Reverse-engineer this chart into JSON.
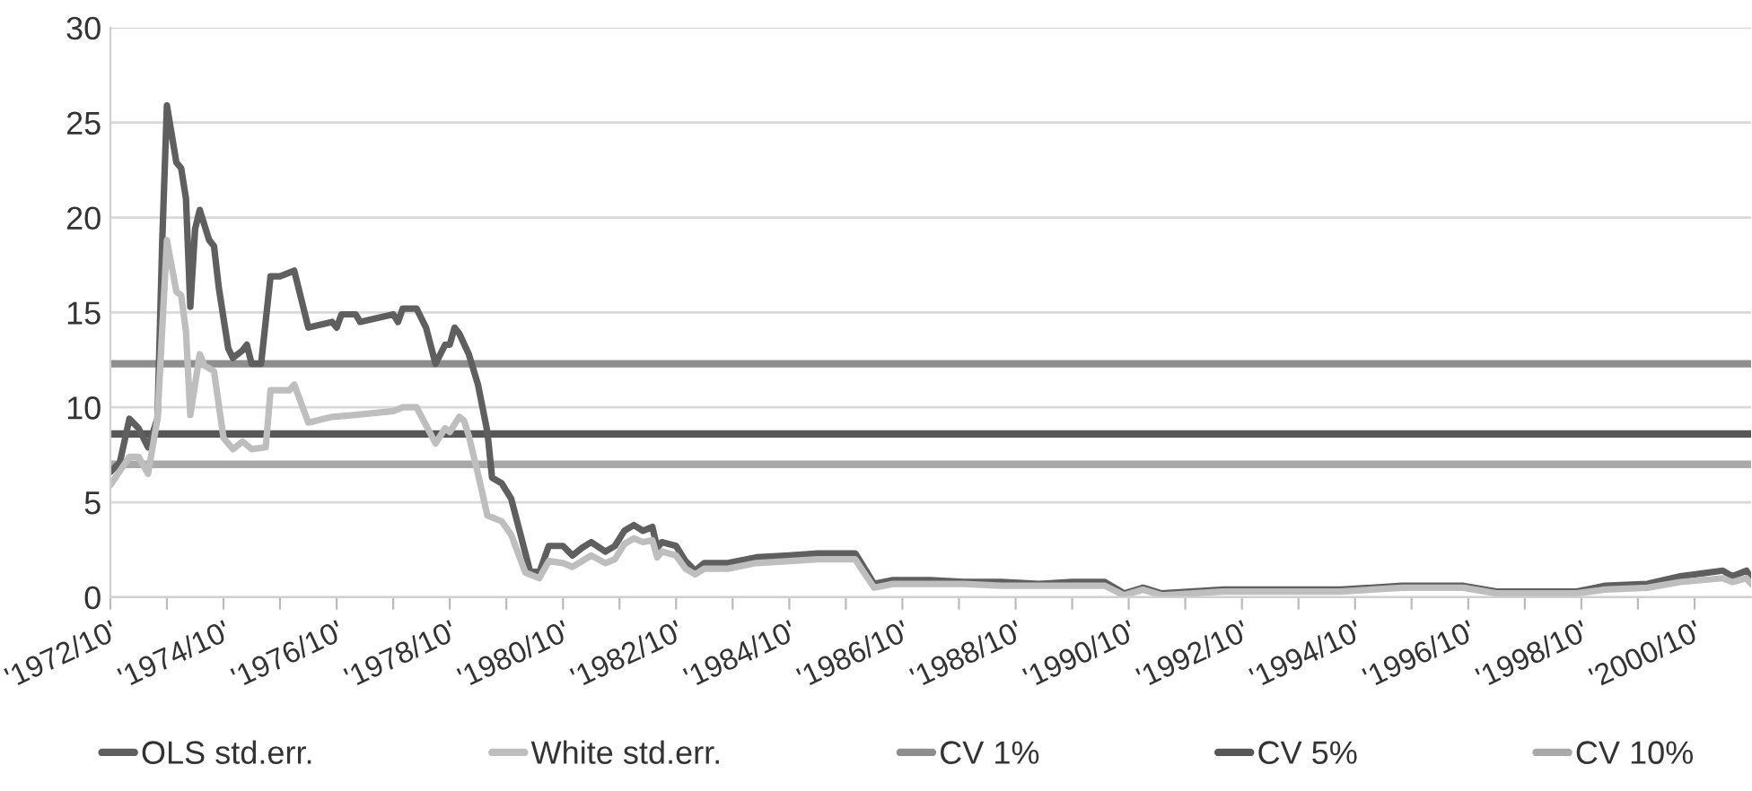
{
  "chart_data": {
    "type": "line",
    "xlim": [
      "1972-10",
      "2001-10"
    ],
    "xticks": [
      {
        "value": "1972-10",
        "label": "'1972/10'"
      },
      {
        "value": "1973-10",
        "label": null
      },
      {
        "value": "1974-10",
        "label": "'1974/10'"
      },
      {
        "value": "1975-10",
        "label": null
      },
      {
        "value": "1976-10",
        "label": "'1976/10'"
      },
      {
        "value": "1977-10",
        "label": null
      },
      {
        "value": "1978-10",
        "label": "'1978/10'"
      },
      {
        "value": "1979-10",
        "label": null
      },
      {
        "value": "1980-10",
        "label": "'1980/10'"
      },
      {
        "value": "1981-10",
        "label": null
      },
      {
        "value": "1982-10",
        "label": "'1982/10'"
      },
      {
        "value": "1983-10",
        "label": null
      },
      {
        "value": "1984-10",
        "label": "'1984/10'"
      },
      {
        "value": "1985-10",
        "label": null
      },
      {
        "value": "1986-10",
        "label": "'1986/10'"
      },
      {
        "value": "1987-10",
        "label": null
      },
      {
        "value": "1988-10",
        "label": "'1988/10'"
      },
      {
        "value": "1989-10",
        "label": null
      },
      {
        "value": "1990-10",
        "label": "'1990/10'"
      },
      {
        "value": "1991-10",
        "label": null
      },
      {
        "value": "1992-10",
        "label": "'1992/10'"
      },
      {
        "value": "1993-10",
        "label": null
      },
      {
        "value": "1994-10",
        "label": "'1994/10'"
      },
      {
        "value": "1995-10",
        "label": null
      },
      {
        "value": "1996-10",
        "label": "'1996/10'"
      },
      {
        "value": "1997-10",
        "label": null
      },
      {
        "value": "1998-10",
        "label": "'1998/10'"
      },
      {
        "value": "1999-10",
        "label": null
      },
      {
        "value": "2000-10",
        "label": "'2000/10'"
      }
    ],
    "ylim": [
      0,
      30
    ],
    "yticks": [
      0,
      5,
      10,
      15,
      20,
      25,
      30
    ],
    "grid": "y",
    "legend": "bottom",
    "marker": "none",
    "line_style": "solid",
    "series": [
      {
        "name": "OLS std.err.",
        "color": "#5f5f5f",
        "x": [
          "1972-10",
          "1972-12",
          "1973-02",
          "1973-04",
          "1973-06",
          "1973-08",
          "1973-09",
          "1973-10",
          "1973-12",
          "1974-01",
          "1974-02",
          "1974-03",
          "1974-04",
          "1974-05",
          "1974-07",
          "1974-08",
          "1974-09",
          "1974-11",
          "1974-12",
          "1975-02",
          "1975-03",
          "1975-04",
          "1975-06",
          "1975-08",
          "1975-10",
          "1976-01",
          "1976-04",
          "1976-09",
          "1976-10",
          "1976-11",
          "1977-02",
          "1977-03",
          "1977-10",
          "1977-11",
          "1977-12",
          "1978-03",
          "1978-05",
          "1978-07",
          "1978-09",
          "1978-10",
          "1978-11",
          "1978-12",
          "1979-02",
          "1979-04",
          "1979-06",
          "1979-07",
          "1979-09",
          "1979-11",
          "1980-01",
          "1980-03",
          "1980-05",
          "1980-07",
          "1980-10",
          "1980-12",
          "1981-02",
          "1981-04",
          "1981-07",
          "1981-09",
          "1981-11",
          "1982-01",
          "1982-03",
          "1982-05",
          "1982-06",
          "1982-07",
          "1982-10",
          "1982-12",
          "1983-02",
          "1983-04",
          "1983-09",
          "1984-03",
          "1984-10",
          "1985-04",
          "1985-12",
          "1986-01",
          "1986-04",
          "1986-08",
          "1987-04",
          "1987-11",
          "1988-07",
          "1989-03",
          "1989-10",
          "1990-05",
          "1990-09",
          "1991-01",
          "1991-05",
          "1992-06",
          "1993-07",
          "1994-07",
          "1995-08",
          "1996-09",
          "1997-04",
          "1998-09",
          "1999-03",
          "1999-12",
          "2000-07",
          "2001-04",
          "2001-06",
          "2001-09",
          "2001-10"
        ],
        "values": [
          6.6,
          7.1,
          9.4,
          8.9,
          7.9,
          9.4,
          18.8,
          25.9,
          22.9,
          22.6,
          21,
          15.3,
          19.4,
          20.4,
          18.8,
          18.5,
          16.3,
          13.1,
          12.6,
          13,
          13.3,
          12.3,
          12.3,
          16.9,
          16.9,
          17.2,
          14.2,
          14.5,
          14.2,
          14.9,
          14.9,
          14.5,
          14.9,
          14.5,
          15.2,
          15.2,
          14.2,
          12.3,
          13.3,
          13.3,
          14.2,
          13.9,
          12.8,
          11.2,
          8.7,
          6.3,
          6,
          5.2,
          3.3,
          1.4,
          1.3,
          2.7,
          2.7,
          2.2,
          2.6,
          2.9,
          2.4,
          2.7,
          3.5,
          3.8,
          3.5,
          3.7,
          2.6,
          2.9,
          2.7,
          1.9,
          1.4,
          1.8,
          1.8,
          2.1,
          2.2,
          2.3,
          2.3,
          1.9,
          0.7,
          0.9,
          0.9,
          0.8,
          0.8,
          0.7,
          0.8,
          0.8,
          0.2,
          0.5,
          0.2,
          0.4,
          0.4,
          0.4,
          0.6,
          0.6,
          0.3,
          0.3,
          0.6,
          0.7,
          1.1,
          1.4,
          1.1,
          1.4,
          1.0
        ]
      },
      {
        "name": "White std.err.",
        "color": "#bebebe",
        "x": [
          "1972-10",
          "1973-02",
          "1973-04",
          "1973-06",
          "1973-08",
          "1973-10",
          "1973-12",
          "1974-01",
          "1974-02",
          "1974-03",
          "1974-05",
          "1974-06",
          "1974-08",
          "1974-10",
          "1974-12",
          "1975-02",
          "1975-04",
          "1975-07",
          "1975-08",
          "1975-12",
          "1976-01",
          "1976-04",
          "1976-09",
          "1977-02",
          "1977-10",
          "1977-12",
          "1978-03",
          "1978-07",
          "1978-09",
          "1978-10",
          "1978-12",
          "1979-01",
          "1979-02",
          "1979-04",
          "1979-06",
          "1979-09",
          "1979-11",
          "1980-02",
          "1980-05",
          "1980-07",
          "1980-10",
          "1980-12",
          "1981-02",
          "1981-04",
          "1981-07",
          "1981-09",
          "1981-11",
          "1982-01",
          "1982-03",
          "1982-05",
          "1982-06",
          "1982-07",
          "1982-10",
          "1982-12",
          "1983-02",
          "1983-04",
          "1983-09",
          "1984-03",
          "1984-10",
          "1985-04",
          "1985-12",
          "1986-01",
          "1986-04",
          "1986-08",
          "1987-04",
          "1987-11",
          "1988-07",
          "1989-03",
          "1989-10",
          "1990-05",
          "1990-09",
          "1991-01",
          "1991-05",
          "1992-06",
          "1993-07",
          "1994-07",
          "1995-08",
          "1996-09",
          "1997-04",
          "1998-09",
          "1999-03",
          "1999-12",
          "2000-07",
          "2001-04",
          "2001-06",
          "2001-09",
          "2001-10"
        ],
        "values": [
          5.9,
          7.4,
          7.4,
          6.5,
          9.4,
          18.8,
          16.1,
          15.9,
          14,
          9.6,
          12.8,
          12.2,
          11.9,
          8.4,
          7.8,
          8.2,
          7.8,
          7.9,
          10.9,
          10.9,
          11.2,
          9.2,
          9.5,
          9.6,
          9.8,
          10,
          10,
          8.1,
          8.9,
          8.7,
          9.5,
          9.3,
          8.5,
          6.5,
          4.3,
          4,
          3.3,
          1.3,
          1,
          1.9,
          1.8,
          1.6,
          1.9,
          2.2,
          1.8,
          2,
          2.8,
          3.1,
          2.9,
          3,
          2.1,
          2.4,
          2.2,
          1.5,
          1.2,
          1.5,
          1.5,
          1.8,
          1.9,
          2,
          2,
          1.6,
          0.5,
          0.7,
          0.7,
          0.7,
          0.6,
          0.6,
          0.6,
          0.6,
          0.1,
          0.4,
          0.1,
          0.3,
          0.3,
          0.3,
          0.5,
          0.5,
          0.2,
          0.2,
          0.4,
          0.5,
          0.8,
          1,
          0.8,
          1,
          0.7
        ]
      }
    ],
    "ref_lines": [
      {
        "axis": "y",
        "value": 12.3,
        "label": "CV 1%",
        "color": "#8e8e8e",
        "line_style": "solid"
      },
      {
        "axis": "y",
        "value": 8.6,
        "label": "CV 5%",
        "color": "#575757",
        "line_style": "solid"
      },
      {
        "axis": "y",
        "value": 7.0,
        "label": "CV 10%",
        "color": "#a9a9a9",
        "line_style": "solid"
      }
    ]
  }
}
